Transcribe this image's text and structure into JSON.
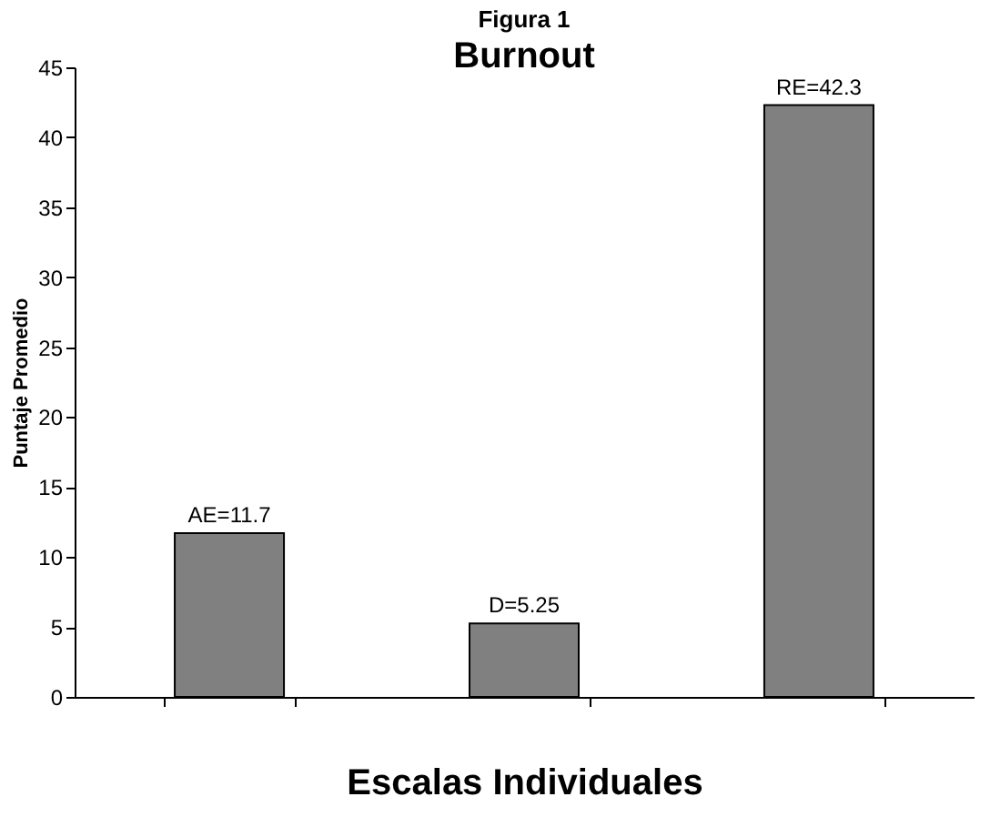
{
  "chart_data": {
    "type": "bar",
    "title": "Figura 1",
    "subtitle": "Burnout",
    "xlabel": "Escalas Individuales",
    "ylabel": "Puntaje Promedio",
    "categories": [
      null,
      null,
      null
    ],
    "series": [
      {
        "color": "#808080",
        "values": [
          11.7,
          5.25,
          42.3
        ]
      }
    ],
    "value_labels": [
      "AE=11.7",
      "D=5.25",
      "RE=42.3"
    ],
    "ylim": [
      0,
      45
    ],
    "yticks": [
      0,
      5,
      10,
      15,
      20,
      25,
      30,
      35,
      40,
      45
    ],
    "grid": false
  }
}
